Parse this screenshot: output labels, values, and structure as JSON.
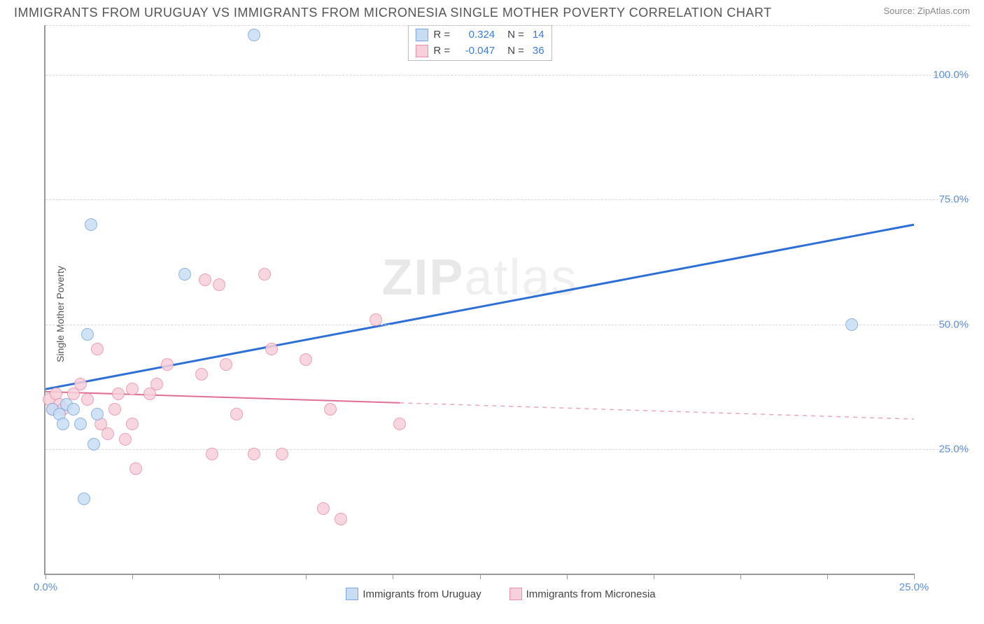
{
  "header": {
    "title": "IMMIGRANTS FROM URUGUAY VS IMMIGRANTS FROM MICRONESIA SINGLE MOTHER POVERTY CORRELATION CHART",
    "source": "Source: ZipAtlas.com"
  },
  "watermark": {
    "part1": "ZIP",
    "part2": "atlas"
  },
  "chart": {
    "type": "scatter",
    "ylabel": "Single Mother Poverty",
    "xlim": [
      0,
      25
    ],
    "ylim": [
      0,
      110
    ],
    "xticks": [
      0,
      2.5,
      5,
      7.5,
      10,
      12.5,
      15,
      17.5,
      20,
      22.5,
      25
    ],
    "xtick_labels": {
      "0": "0.0%",
      "25": "25.0%"
    },
    "yticks": [
      25,
      50,
      75,
      100
    ],
    "ytick_labels": {
      "25": "25.0%",
      "50": "50.0%",
      "75": "75.0%",
      "100": "100.0%"
    },
    "grid_color": "#d8d8d8",
    "axis_color": "#999999",
    "background_color": "#ffffff",
    "marker_radius": 9,
    "marker_border": 1.5,
    "series": [
      {
        "name": "Immigrants from Uruguay",
        "fill": "#c8ddf4",
        "stroke": "#7ba8dc",
        "legend": {
          "R_label": "R =",
          "R": "0.324",
          "N_label": "N =",
          "N": "14"
        },
        "points": [
          [
            0.2,
            33
          ],
          [
            0.4,
            32
          ],
          [
            0.6,
            34
          ],
          [
            0.5,
            30
          ],
          [
            0.8,
            33
          ],
          [
            1.2,
            48
          ],
          [
            1.3,
            70
          ],
          [
            1.0,
            30
          ],
          [
            1.4,
            26
          ],
          [
            1.1,
            15
          ],
          [
            1.5,
            32
          ],
          [
            4.0,
            60
          ],
          [
            6.0,
            108
          ],
          [
            23.2,
            50
          ]
        ],
        "trend": {
          "x1": 0,
          "y1": 37,
          "x2": 25,
          "y2": 70,
          "solid_until": 25,
          "width": 3
        }
      },
      {
        "name": "Immigrants from Micronesia",
        "fill": "#f7d0db",
        "stroke": "#e890aa",
        "legend": {
          "R_label": "R =",
          "R": "-0.047",
          "N_label": "N =",
          "N": "36"
        },
        "points": [
          [
            0.1,
            35
          ],
          [
            0.2,
            33
          ],
          [
            0.3,
            36
          ],
          [
            0.4,
            34
          ],
          [
            0.5,
            33
          ],
          [
            0.8,
            36
          ],
          [
            1.0,
            38
          ],
          [
            1.2,
            35
          ],
          [
            1.5,
            45
          ],
          [
            1.6,
            30
          ],
          [
            1.8,
            28
          ],
          [
            2.0,
            33
          ],
          [
            2.1,
            36
          ],
          [
            2.3,
            27
          ],
          [
            2.5,
            30
          ],
          [
            2.5,
            37
          ],
          [
            2.6,
            21
          ],
          [
            3.0,
            36
          ],
          [
            3.2,
            38
          ],
          [
            3.5,
            42
          ],
          [
            4.5,
            40
          ],
          [
            4.6,
            59
          ],
          [
            4.8,
            24
          ],
          [
            5.0,
            58
          ],
          [
            5.2,
            42
          ],
          [
            5.5,
            32
          ],
          [
            6.0,
            24
          ],
          [
            6.3,
            60
          ],
          [
            6.5,
            45
          ],
          [
            6.8,
            24
          ],
          [
            7.5,
            43
          ],
          [
            8.0,
            13
          ],
          [
            8.2,
            33
          ],
          [
            8.5,
            11
          ],
          [
            9.5,
            51
          ],
          [
            10.2,
            30
          ]
        ],
        "trend": {
          "x1": 0,
          "y1": 36.5,
          "x2": 25,
          "y2": 31,
          "solid_until": 10.2,
          "width": 2
        }
      }
    ]
  }
}
